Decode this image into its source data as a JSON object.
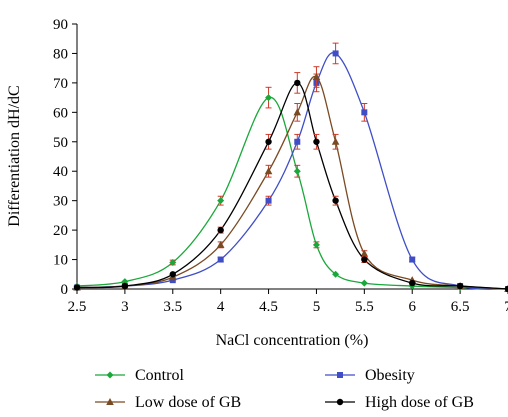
{
  "chart_data": {
    "type": "line",
    "title": "",
    "xlabel": "NaCl concentration (%)",
    "ylabel": "Differentiation dH/dC",
    "xlim": [
      2.5,
      7
    ],
    "ylim": [
      0,
      90
    ],
    "xticks": [
      "2.5",
      "3",
      "3.5",
      "4",
      "4.5",
      "5",
      "5.5",
      "6",
      "6.5",
      "7"
    ],
    "yticks": [
      "0",
      "10",
      "20",
      "30",
      "40",
      "50",
      "60",
      "70",
      "80",
      "90"
    ],
    "grid": false,
    "legend_position": "bottom",
    "error_bar_color": "#d03a2a",
    "series": [
      {
        "name": "Control",
        "color": "#1aa83a",
        "marker": "diamond",
        "x": [
          2.5,
          3,
          3.5,
          4,
          4.5,
          4.8,
          5,
          5.2,
          5.5,
          6,
          6.5,
          7
        ],
        "y": [
          1,
          2.5,
          9,
          30,
          65,
          40,
          15,
          5,
          2,
          1,
          0.5,
          0
        ],
        "err": [
          0.3,
          0.5,
          0.8,
          1.5,
          3.5,
          2,
          1,
          0.5,
          0.3,
          0.2,
          0.2,
          0.1
        ]
      },
      {
        "name": "Obesity",
        "color": "#3f4ec6",
        "marker": "square",
        "x": [
          2.5,
          3,
          3.5,
          4,
          4.5,
          4.8,
          5,
          5.2,
          5.5,
          6,
          6.5,
          7
        ],
        "y": [
          0.5,
          1,
          3,
          10,
          30,
          50,
          70,
          80,
          60,
          10,
          1,
          0
        ],
        "err": [
          0.2,
          0.3,
          0.4,
          0.8,
          1.5,
          2.5,
          3,
          3.5,
          3,
          0.8,
          0.2,
          0.1
        ]
      },
      {
        "name": "Low dose of GB",
        "color": "#7a4a22",
        "marker": "triangle",
        "x": [
          2.5,
          3,
          3.5,
          4,
          4.5,
          4.8,
          5,
          5.2,
          5.5,
          6,
          6.5,
          7
        ],
        "y": [
          0.5,
          1,
          4,
          15,
          40,
          60,
          72,
          50,
          12,
          3,
          1,
          0
        ],
        "err": [
          0.2,
          0.3,
          0.5,
          1,
          2,
          3,
          3.5,
          2.5,
          1,
          0.4,
          0.2,
          0.1
        ]
      },
      {
        "name": "High dose of GB",
        "color": "#000000",
        "marker": "circle",
        "x": [
          2.5,
          3,
          3.5,
          4,
          4.5,
          4.8,
          5,
          5.2,
          5.5,
          6,
          6.5,
          7
        ],
        "y": [
          0.5,
          1,
          5,
          20,
          50,
          70,
          50,
          30,
          10,
          2,
          1,
          0
        ],
        "err": [
          0.2,
          0.3,
          0.5,
          1,
          2.5,
          3.5,
          2.5,
          1.5,
          1,
          0.4,
          0.2,
          0.1
        ]
      }
    ]
  }
}
